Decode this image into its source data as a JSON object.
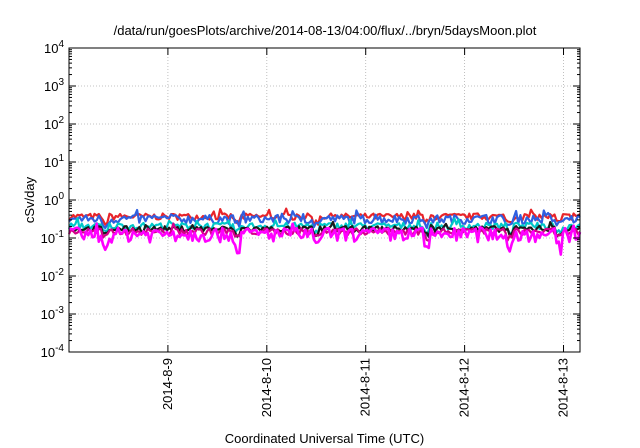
{
  "chart_data": {
    "type": "line",
    "title": "/data/run/goesPlots/archive/2014-08-13/04:00/flux/../bryn/5daysMoon.plot",
    "xlabel": "Coordinated Universal Time (UTC)",
    "ylabel": "cSv/day",
    "scale": {
      "y": "log"
    },
    "grid": true,
    "legend": "none",
    "xlim": [
      "2014-08-08T00:00",
      "2014-08-13T04:00"
    ],
    "ylim": [
      0.0001,
      10000
    ],
    "x_ticks": [
      {
        "value": "2014-08-09T00:00",
        "label": "2014-8-9"
      },
      {
        "value": "2014-08-10T00:00",
        "label": "2014-8-10"
      },
      {
        "value": "2014-08-11T00:00",
        "label": "2014-8-11"
      },
      {
        "value": "2014-08-12T00:00",
        "label": "2014-8-12"
      },
      {
        "value": "2014-08-13T00:00",
        "label": "2014-8-13"
      }
    ],
    "y_ticks": [
      {
        "value": 0.0001,
        "base": "10",
        "exp": "-4"
      },
      {
        "value": 0.001,
        "base": "10",
        "exp": "-3"
      },
      {
        "value": 0.01,
        "base": "10",
        "exp": "-2"
      },
      {
        "value": 0.1,
        "base": "10",
        "exp": "-1"
      },
      {
        "value": 1,
        "base": "10",
        "exp": "0"
      },
      {
        "value": 10,
        "base": "10",
        "exp": "1"
      },
      {
        "value": 100,
        "base": "10",
        "exp": "2"
      },
      {
        "value": 1000,
        "base": "10",
        "exp": "3"
      },
      {
        "value": 10000,
        "base": "10",
        "exp": "4"
      }
    ],
    "series": [
      {
        "color": "#e8242a",
        "level": 0.37,
        "jitter": 0.12
      },
      {
        "color": "#2f5fe0",
        "level": 0.32,
        "jitter": 0.14
      },
      {
        "color": "#00c8c8",
        "level": 0.21,
        "jitter": 0.07
      },
      {
        "color": "#1a1a1a",
        "level": 0.175,
        "jitter": 0.05
      },
      {
        "color": "#d4008a",
        "level": 0.15,
        "jitter": 0.05
      },
      {
        "color": "#ff00ff",
        "level": 0.13,
        "jitter": 0.09
      }
    ],
    "dips": [
      "2014-08-08T09:00",
      "2014-08-09T17:00",
      "2014-08-10T12:00",
      "2014-08-11T15:00",
      "2014-08-12T11:00",
      "2014-08-12T23:00"
    ]
  }
}
